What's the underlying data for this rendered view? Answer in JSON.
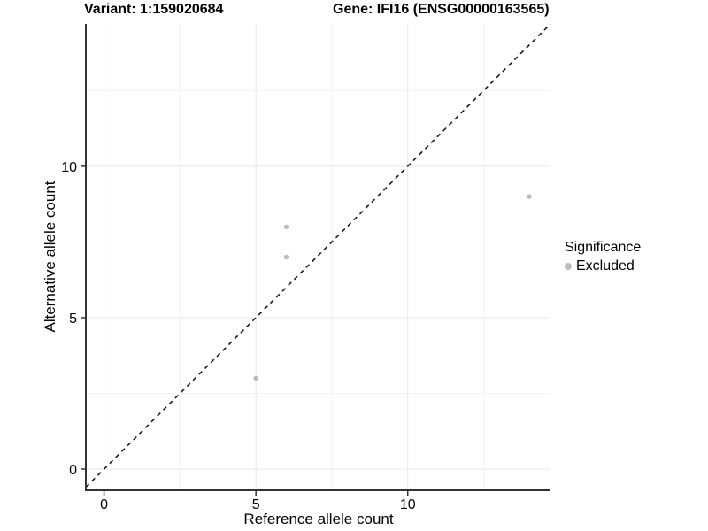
{
  "chart_data": {
    "type": "scatter",
    "title_variant": "Variant: 1:159020684",
    "title_gene": "Gene: IFI16 (ENSG00000163565)",
    "xlabel": "Reference allele count",
    "ylabel": "Alternative allele count",
    "xlim": [
      -0.6,
      14.7
    ],
    "ylim": [
      -0.7,
      14.7
    ],
    "x_ticks": [
      0,
      5,
      10
    ],
    "y_ticks": [
      0,
      5,
      10
    ],
    "x_minor_ticks": [
      2.5,
      7.5,
      12.5
    ],
    "y_minor_ticks": [
      2.5,
      7.5,
      12.5
    ],
    "grid": {
      "major": true,
      "minor": true
    },
    "series": [
      {
        "name": "Excluded",
        "color": "#bdbdbd",
        "points": [
          [
            5,
            3
          ],
          [
            6,
            7
          ],
          [
            6,
            8
          ],
          [
            14,
            9
          ]
        ]
      }
    ],
    "identity_line": {
      "style": "dashed",
      "slope": 1,
      "intercept": 0,
      "color": "#1a1a1a"
    },
    "legend": {
      "title": "Significance",
      "position": "right",
      "items": [
        {
          "label": "Excluded",
          "color": "#bdbdbd"
        }
      ]
    },
    "colors": {
      "axis_line": "#333333",
      "major_grid": "#e8e8e8",
      "minor_grid": "#f3f3f3",
      "tick": "#333333"
    }
  }
}
